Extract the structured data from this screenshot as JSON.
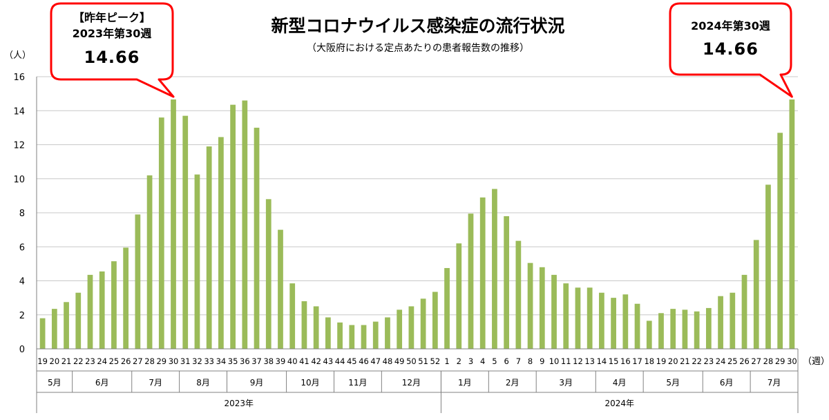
{
  "colors": {
    "bar": "#9bbb59",
    "callout_border": "#ff0000",
    "grid": "#c8c8c8"
  },
  "chart_data": {
    "type": "bar",
    "title": "新型コロナウイルス感染症の流行状況",
    "subtitle": "（大阪府における定点あたりの患者報告数の推移）",
    "ylabel": "（人）",
    "xlabel": "（週）",
    "ylim": [
      0,
      16
    ],
    "yticks": [
      "0",
      "2",
      "4",
      "6",
      "8",
      "10",
      "12",
      "14",
      "16"
    ],
    "grid": true,
    "categories": [
      "19",
      "20",
      "21",
      "22",
      "23",
      "24",
      "25",
      "26",
      "27",
      "28",
      "29",
      "30",
      "31",
      "32",
      "33",
      "34",
      "35",
      "36",
      "37",
      "38",
      "39",
      "40",
      "41",
      "42",
      "43",
      "44",
      "45",
      "46",
      "47",
      "48",
      "49",
      "50",
      "51",
      "52",
      "1",
      "2",
      "3",
      "4",
      "5",
      "6",
      "7",
      "8",
      "9",
      "10",
      "11",
      "12",
      "13",
      "14",
      "15",
      "16",
      "17",
      "18",
      "19",
      "20",
      "21",
      "22",
      "23",
      "24",
      "25",
      "26",
      "27",
      "28",
      "29",
      "30"
    ],
    "values": [
      1.8,
      2.35,
      2.75,
      3.3,
      4.35,
      4.55,
      5.15,
      5.95,
      7.9,
      10.2,
      13.6,
      14.66,
      13.7,
      10.25,
      11.9,
      12.45,
      14.35,
      14.6,
      13.0,
      8.8,
      7.0,
      3.85,
      2.8,
      2.5,
      1.85,
      1.55,
      1.4,
      1.4,
      1.6,
      1.85,
      2.3,
      2.5,
      2.95,
      3.35,
      4.75,
      6.2,
      7.95,
      8.9,
      9.4,
      7.8,
      6.35,
      5.05,
      4.8,
      4.35,
      3.85,
      3.6,
      3.6,
      3.3,
      3.0,
      3.2,
      2.65,
      1.65,
      2.1,
      2.35,
      2.3,
      2.2,
      2.4,
      3.1,
      3.3,
      4.35,
      6.4,
      9.65,
      12.7,
      14.66
    ],
    "months": [
      {
        "label": "5月",
        "span": 3
      },
      {
        "label": "6月",
        "span": 5
      },
      {
        "label": "7月",
        "span": 4
      },
      {
        "label": "8月",
        "span": 4
      },
      {
        "label": "9月",
        "span": 5
      },
      {
        "label": "10月",
        "span": 4
      },
      {
        "label": "11月",
        "span": 4
      },
      {
        "label": "12月",
        "span": 5
      },
      {
        "label": "1月",
        "span": 4
      },
      {
        "label": "2月",
        "span": 4
      },
      {
        "label": "3月",
        "span": 5
      },
      {
        "label": "4月",
        "span": 4
      },
      {
        "label": "5月",
        "span": 5
      },
      {
        "label": "6月",
        "span": 4
      },
      {
        "label": "7月",
        "span": 4
      }
    ],
    "years": [
      {
        "label": "2023年",
        "span": 34
      },
      {
        "label": "2024年",
        "span": 30
      }
    ],
    "annotations": [
      {
        "lines": [
          "【昨年ピーク】",
          "2023年第30週"
        ],
        "value": "14.66",
        "target_index": 11
      },
      {
        "lines": [
          "2024年第30週"
        ],
        "value": "14.66",
        "target_index": 63
      }
    ]
  }
}
